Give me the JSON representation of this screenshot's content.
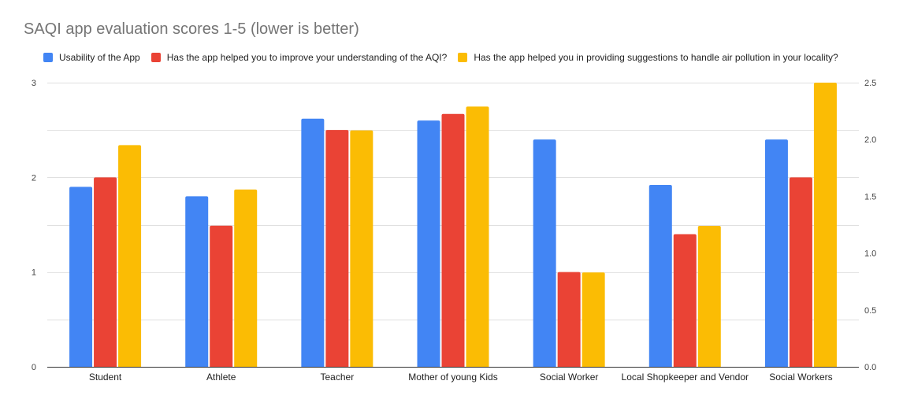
{
  "chart_data": {
    "type": "bar",
    "title": "SAQI app evaluation scores 1-5 (lower is better)",
    "categories": [
      "Student",
      "Athlete",
      "Teacher",
      "Mother of young Kids",
      "Social Worker",
      "Local Shopkeeper and Vendor",
      "Social Workers"
    ],
    "series": [
      {
        "name": "Usability of the App",
        "color": "#4285F4",
        "axis": "left",
        "values": [
          1.9,
          1.8,
          2.62,
          2.6,
          2.4,
          1.92,
          2.4
        ]
      },
      {
        "name": "Has the app helped you to improve your understanding of the AQI?",
        "color": "#EA4335",
        "axis": "left",
        "values": [
          2.0,
          1.49,
          2.5,
          2.67,
          1.0,
          1.4,
          2.0
        ]
      },
      {
        "name": "Has the app helped you in providing suggestions to handle air pollution in your locality?",
        "color": "#FBBC04",
        "axis": "right",
        "values": [
          1.95,
          1.56,
          2.08,
          2.29,
          0.83,
          1.24,
          2.5
        ]
      }
    ],
    "y_left": {
      "ylim": [
        0,
        3
      ],
      "ticks": [
        "0",
        "1",
        "2",
        "3"
      ],
      "gridlines": [
        0,
        0.5,
        1,
        1.5,
        2,
        2.5,
        3
      ]
    },
    "y_right": {
      "ylim": [
        0,
        2.5
      ],
      "ticks": [
        "0.0",
        "0.5",
        "1.0",
        "1.5",
        "2.0",
        "2.5"
      ]
    },
    "xlabel": "",
    "ylabel": "",
    "grid": true,
    "legend_position": "top-left"
  }
}
